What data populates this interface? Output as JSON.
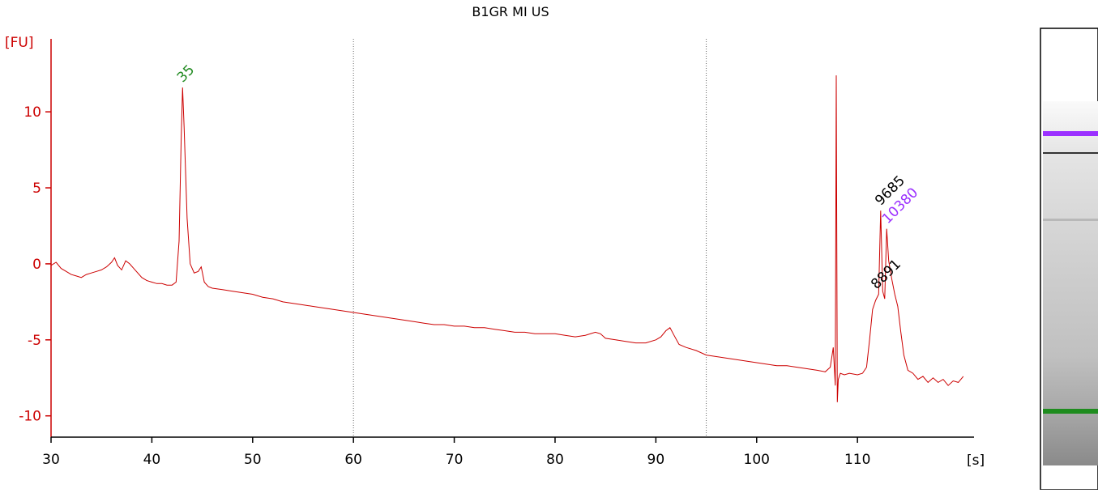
{
  "chart_data": {
    "type": "line",
    "title": "B1GR MI US",
    "y_label": "[FU]",
    "x_label": "[s]",
    "color": "#cc0000",
    "x": [
      30,
      30.5,
      31,
      31.5,
      32,
      32.5,
      33,
      33.5,
      34,
      34.5,
      35,
      35.5,
      36,
      36.3,
      36.6,
      37,
      37.4,
      37.8,
      38.2,
      39,
      39.5,
      40,
      40.5,
      41,
      41.5,
      42,
      42.4,
      42.7,
      42.9,
      43.05,
      43.2,
      43.5,
      43.8,
      44.2,
      44.6,
      44.9,
      45.2,
      45.6,
      46,
      47,
      48,
      49,
      50,
      51,
      52,
      53,
      54,
      55,
      56,
      57,
      58,
      59,
      60,
      61,
      62,
      63,
      64,
      65,
      66,
      67,
      68,
      69,
      70,
      71,
      72,
      73,
      74,
      75,
      76,
      77,
      78,
      79,
      80,
      81,
      82,
      83,
      84,
      84.5,
      85,
      86,
      87,
      88,
      89,
      90,
      90.5,
      91,
      91.4,
      91.8,
      92.3,
      93,
      94,
      95,
      96,
      97,
      98,
      99,
      100,
      101,
      102,
      103,
      104,
      105,
      106,
      106.8,
      107.3,
      107.6,
      107.8,
      107.9,
      108.0,
      108.1,
      108.3,
      108.7,
      109.2,
      110,
      110.5,
      110.9,
      111.2,
      111.5,
      111.8,
      112.1,
      112.3,
      112.5,
      112.7,
      112.9,
      113.1,
      113.4,
      113.7,
      114.0,
      114.3,
      114.6,
      115,
      115.5,
      116,
      116.5,
      117,
      117.5,
      118,
      118.5,
      119,
      119.5,
      120,
      120.5
    ],
    "values": [
      -0.1,
      0.1,
      -0.3,
      -0.5,
      -0.7,
      -0.8,
      -0.9,
      -0.7,
      -0.6,
      -0.5,
      -0.4,
      -0.2,
      0.1,
      0.4,
      -0.1,
      -0.4,
      0.2,
      0.0,
      -0.3,
      -0.9,
      -1.1,
      -1.2,
      -1.3,
      -1.3,
      -1.4,
      -1.4,
      -1.2,
      1.5,
      8.0,
      11.6,
      9.0,
      3.0,
      0.0,
      -0.6,
      -0.5,
      -0.2,
      -1.2,
      -1.5,
      -1.6,
      -1.7,
      -1.8,
      -1.9,
      -2.0,
      -2.2,
      -2.3,
      -2.5,
      -2.6,
      -2.7,
      -2.8,
      -2.9,
      -3.0,
      -3.1,
      -3.2,
      -3.3,
      -3.4,
      -3.5,
      -3.6,
      -3.7,
      -3.8,
      -3.9,
      -4.0,
      -4.0,
      -4.1,
      -4.1,
      -4.2,
      -4.2,
      -4.3,
      -4.4,
      -4.5,
      -4.5,
      -4.6,
      -4.6,
      -4.6,
      -4.7,
      -4.8,
      -4.7,
      -4.5,
      -4.6,
      -4.9,
      -5.0,
      -5.1,
      -5.2,
      -5.2,
      -5.0,
      -4.8,
      -4.4,
      -4.2,
      -4.7,
      -5.3,
      -5.5,
      -5.7,
      -6.0,
      -6.1,
      -6.2,
      -6.3,
      -6.4,
      -6.5,
      -6.6,
      -6.7,
      -6.7,
      -6.8,
      -6.9,
      -7.0,
      -7.1,
      -6.8,
      -5.5,
      -8.0,
      12.4,
      -9.1,
      -7.6,
      -7.2,
      -7.3,
      -7.2,
      -7.3,
      -7.2,
      -6.8,
      -5.0,
      -3.0,
      -2.4,
      -2.0,
      3.5,
      -1.8,
      -2.3,
      2.3,
      0.2,
      -1.0,
      -2.0,
      -2.8,
      -4.5,
      -6.0,
      -7.0,
      -7.2,
      -7.6,
      -7.4,
      -7.8,
      -7.5,
      -7.8,
      -7.6,
      -8.0,
      -7.7,
      -7.8,
      -7.4
    ],
    "xlim": [
      30,
      121
    ],
    "ylim": [
      -11.4,
      14.8
    ],
    "xticks": [
      30,
      40,
      50,
      60,
      70,
      80,
      90,
      100,
      110
    ],
    "yticks": [
      -10,
      -5,
      0,
      5,
      10
    ],
    "vlines": [
      60,
      95
    ],
    "annotations": [
      {
        "text": "35",
        "x": 43.05,
        "y": 11.9,
        "color": "#228b22"
      },
      {
        "text": "9685",
        "x": 112.3,
        "y": 3.8,
        "color": "#000000"
      },
      {
        "text": "10380",
        "x": 113.0,
        "y": 2.6,
        "color": "#9b30ff"
      },
      {
        "text": "8891",
        "x": 111.9,
        "y": -1.7,
        "color": "#000000"
      }
    ]
  }
}
